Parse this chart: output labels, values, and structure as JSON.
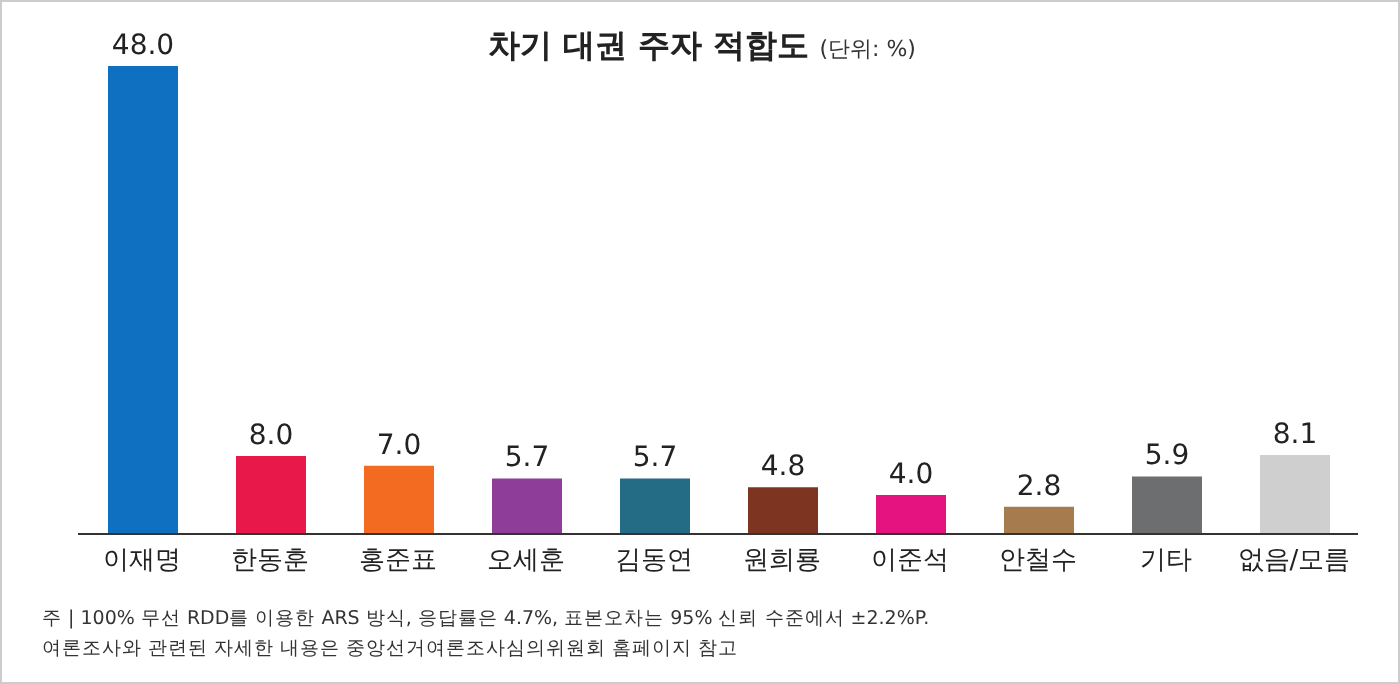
{
  "chart_data": {
    "type": "bar",
    "title": "차기 대권 주자 적합도",
    "subtitle": "(단위: %)",
    "categories": [
      "이재명",
      "한동훈",
      "홍준표",
      "오세훈",
      "김동연",
      "원희룡",
      "이준석",
      "안철수",
      "기타",
      "없음/모름"
    ],
    "values": [
      48.0,
      8.0,
      7.0,
      5.7,
      5.7,
      4.8,
      4.0,
      2.8,
      5.9,
      8.1
    ],
    "colors": [
      "#0f6fc0",
      "#e8194a",
      "#f26b21",
      "#8e3e98",
      "#246c86",
      "#7d3522",
      "#e5137f",
      "#a67c4e",
      "#6d6e70",
      "#cfcfcf"
    ],
    "value_labels": [
      "48.0",
      "8.0",
      "7.0",
      "5.7",
      "5.7",
      "4.8",
      "4.0",
      "2.8",
      "5.9",
      "8.1"
    ],
    "tick_labels": "x",
    "grid": false,
    "legend": false,
    "annotations": [
      "주 | 100% 무선 RDD를 이용한 ARS 방식, 응답률은 4.7%, 표본오차는 95% 신뢰 수준에서 ±2.2%P.",
      "여론조사와 관련된 자세한 내용은 중앙선거여론조사심의위원회 홈페이지 참고"
    ]
  }
}
